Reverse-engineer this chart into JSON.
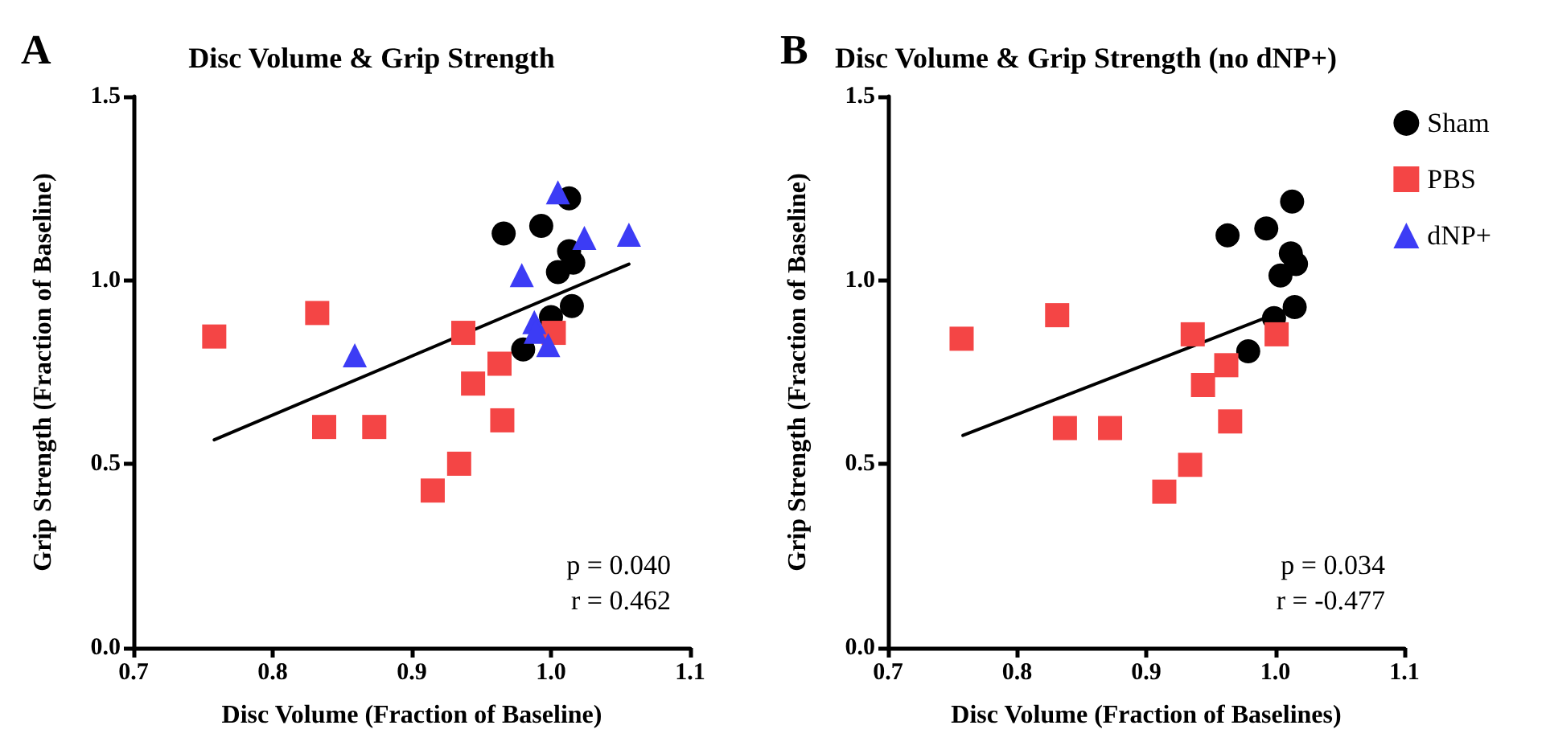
{
  "chart_data": [
    {
      "type": "scatter",
      "title": "Disc Volume & Grip Strength",
      "xlabel": "Disc Volume (Fraction of Baseline)",
      "ylabel": "Grip Strength (Fraction of Baseline)",
      "annotations": [
        "A",
        "p = 0.040",
        "r = 0.462"
      ],
      "xlim": [
        0.7,
        1.1
      ],
      "xticks": [
        {
          "value": 0.7,
          "label": "0.7"
        },
        {
          "value": 0.8,
          "label": "0.8"
        },
        {
          "value": 0.9,
          "label": "0.9"
        },
        {
          "value": 1.0,
          "label": "1.0"
        },
        {
          "value": 1.1,
          "label": "1.1"
        }
      ],
      "ylim": [
        0,
        1.5
      ],
      "yticks": [
        {
          "value": 0,
          "label": "0.0"
        },
        {
          "value": 0.5,
          "label": "0.5"
        },
        {
          "value": 1.0,
          "label": "1.0"
        },
        {
          "value": 1.5,
          "label": "1.5"
        }
      ],
      "grid": false,
      "legend": false,
      "series": [
        {
          "color": "#000000",
          "marker": "circle",
          "x": [
            0.966,
            0.993,
            1.013,
            1.013,
            1.016,
            1.005,
            1.015,
            1.0,
            0.98
          ],
          "values": [
            1.127,
            1.148,
            1.223,
            1.079,
            1.048,
            1.022,
            0.93,
            0.9,
            0.812
          ]
        },
        {
          "color": "#f44545",
          "marker": "square",
          "x": [
            0.758,
            0.832,
            0.837,
            0.873,
            0.915,
            0.934,
            0.937,
            0.944,
            0.963,
            0.965,
            1.002
          ],
          "values": [
            0.847,
            0.911,
            0.601,
            0.601,
            0.428,
            0.501,
            0.857,
            0.719,
            0.773,
            0.619,
            0.857
          ]
        },
        {
          "color": "#3c3cf5",
          "marker": "triangle",
          "x": [
            0.859,
            0.979,
            0.988,
            0.989,
            0.998,
            1.005,
            1.024,
            1.056
          ],
          "values": [
            0.796,
            1.014,
            0.886,
            0.86,
            0.824,
            1.239,
            1.115,
            1.124
          ]
        },
        {
          "type": "line",
          "color": "#000000",
          "marker": "none",
          "x": [
            0.758,
            1.056
          ],
          "values": [
            0.566,
            1.044
          ]
        }
      ]
    },
    {
      "type": "scatter",
      "title": "Disc Volume & Grip Strength (no dNP+)",
      "xlabel": "Disc Volume (Fraction of Baselines)",
      "ylabel": "Grip Strength (Fraction of Baseline)",
      "annotations": [
        "B",
        "p = 0.034",
        "r = -0.477"
      ],
      "xlim": [
        0.7,
        1.1
      ],
      "xticks": [
        {
          "value": 0.7,
          "label": "0.7"
        },
        {
          "value": 0.8,
          "label": "0.8"
        },
        {
          "value": 0.9,
          "label": "0.9"
        },
        {
          "value": 1.0,
          "label": "1.0"
        },
        {
          "value": 1.1,
          "label": "1.1"
        }
      ],
      "ylim": [
        0,
        1.5
      ],
      "yticks": [
        {
          "value": 0,
          "label": "0.0"
        },
        {
          "value": 0.5,
          "label": "0.5"
        },
        {
          "value": 1.0,
          "label": "1.0"
        },
        {
          "value": 1.5,
          "label": "1.5"
        }
      ],
      "grid": false,
      "legend": "top right",
      "series": [
        {
          "name": "Sham",
          "color": "#000000",
          "marker": "circle",
          "x": [
            0.963,
            0.993,
            1.013,
            1.012,
            1.016,
            1.004,
            1.015,
            0.999,
            0.979
          ],
          "values": [
            1.122,
            1.141,
            1.214,
            1.073,
            1.044,
            1.013,
            0.927,
            0.897,
            0.807
          ]
        },
        {
          "name": "PBS",
          "color": "#f44545",
          "marker": "square",
          "x": [
            0.757,
            0.831,
            0.837,
            0.872,
            0.914,
            0.934,
            0.936,
            0.944,
            0.962,
            0.965,
            1.001
          ],
          "values": [
            0.841,
            0.905,
            0.598,
            0.598,
            0.425,
            0.498,
            0.853,
            0.715,
            0.769,
            0.616,
            0.853
          ]
        },
        {
          "name": "dNP+",
          "color": "#3c3cf5",
          "marker": "triangle"
        },
        {
          "type": "line",
          "color": "#000000",
          "marker": "none",
          "x": [
            0.758,
            1.016
          ],
          "values": [
            0.578,
            0.93
          ]
        }
      ]
    }
  ]
}
